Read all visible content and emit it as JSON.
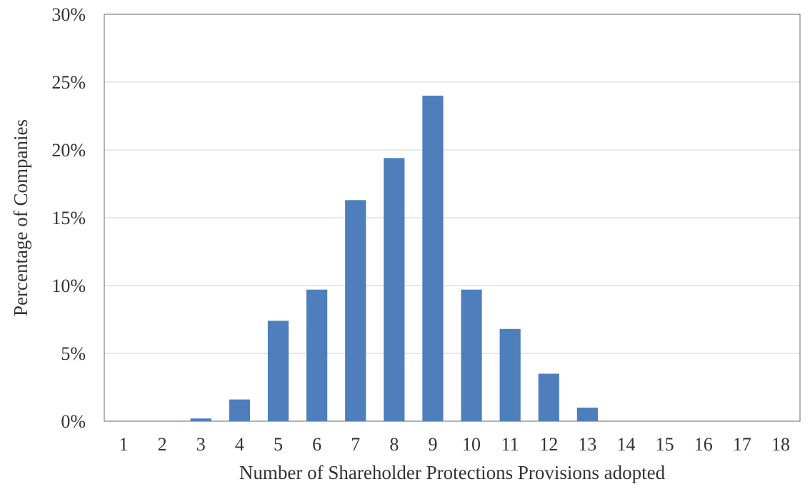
{
  "chart_data": {
    "type": "bar",
    "title": "",
    "xlabel": "Number of Shareholder Protections Provisions adopted",
    "ylabel": "Percentage of Companies",
    "categories": [
      "1",
      "2",
      "3",
      "4",
      "5",
      "6",
      "7",
      "8",
      "9",
      "10",
      "11",
      "12",
      "13",
      "14",
      "15",
      "16",
      "17",
      "18"
    ],
    "values": [
      0,
      0,
      0.2,
      1.6,
      7.4,
      9.7,
      16.3,
      19.4,
      24.0,
      9.7,
      6.8,
      3.5,
      1.0,
      0,
      0,
      0,
      0,
      0
    ],
    "ylim": [
      0,
      30
    ],
    "yticks": [
      0,
      5,
      10,
      15,
      20,
      25,
      30
    ],
    "ytick_labels": [
      "0%",
      "5%",
      "10%",
      "15%",
      "20%",
      "25%",
      "30%"
    ],
    "grid": true,
    "legend": "none",
    "bar_color": "#4e7fbc"
  }
}
